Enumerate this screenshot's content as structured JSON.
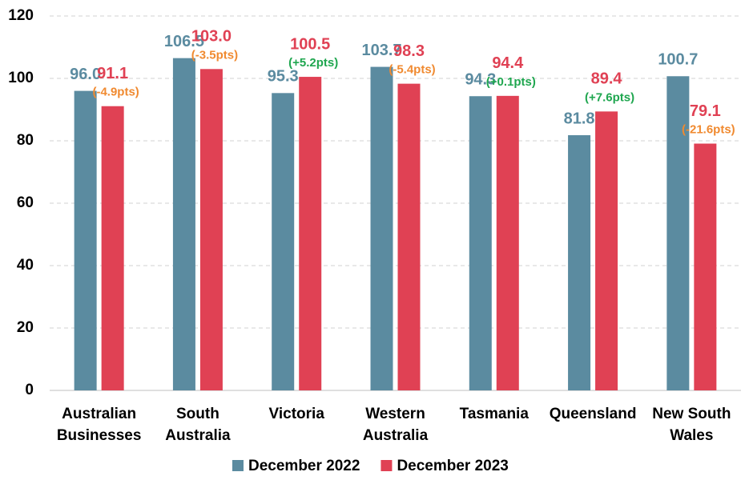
{
  "chart_data": {
    "type": "bar",
    "categories": [
      [
        "Australian",
        "Businesses"
      ],
      [
        "South",
        "Australia"
      ],
      [
        "Victoria"
      ],
      [
        "Western",
        "Australia"
      ],
      [
        "Tasmania"
      ],
      [
        "Queensland"
      ],
      [
        "New South",
        "Wales"
      ]
    ],
    "series": [
      {
        "name": "December 2022",
        "color": "#5b8ba0",
        "values": [
          96.0,
          106.5,
          95.3,
          103.7,
          94.3,
          81.8,
          100.7
        ],
        "value_labels": [
          "96.0",
          "106.5",
          "95.3",
          "103.7",
          "94.3",
          "81.8",
          "100.7"
        ]
      },
      {
        "name": "December 2023",
        "color": "#e04154",
        "values": [
          91.1,
          103.0,
          100.5,
          98.3,
          94.4,
          89.4,
          79.1
        ],
        "value_labels": [
          "91.1",
          "103.0",
          "100.5",
          "98.3",
          "94.4",
          "89.4",
          "79.1"
        ]
      }
    ],
    "change_labels": [
      "(-4.9pts)",
      "(-3.5pts)",
      "(+5.2pts)",
      "(-5.4pts)",
      "(+0.1pts)",
      "(+7.6pts)",
      "(-21.6pts)"
    ],
    "change_colors": [
      "#f08a30",
      "#f08a30",
      "#1fa64f",
      "#f08a30",
      "#1fa64f",
      "#1fa64f",
      "#f08a30"
    ],
    "ylim": [
      0,
      120
    ],
    "yticks": [
      0,
      20,
      40,
      60,
      80,
      100,
      120
    ],
    "grid": true,
    "legend": "bottom"
  }
}
